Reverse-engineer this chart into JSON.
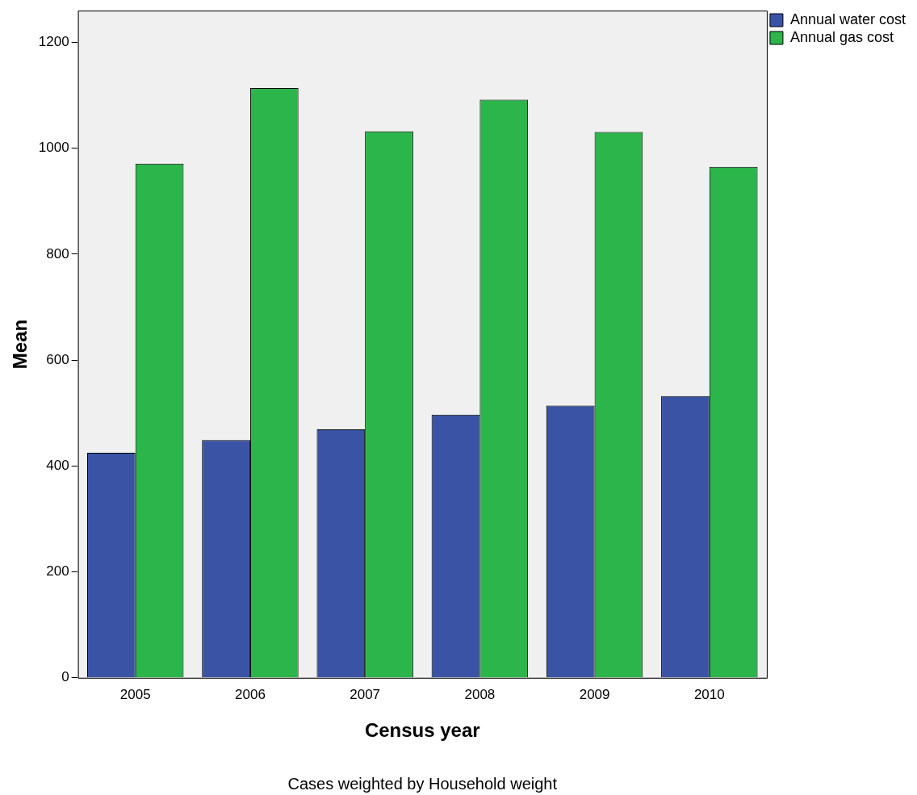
{
  "chart_data": {
    "type": "bar",
    "xlabel": "Census year",
    "ylabel": "Mean",
    "categories": [
      "2005",
      "2006",
      "2007",
      "2008",
      "2009",
      "2010"
    ],
    "series": [
      {
        "name": "Annual water cost",
        "color": "#3a53a4",
        "values": [
          425,
          449,
          469,
          497,
          514,
          532
        ]
      },
      {
        "name": "Annual gas cost",
        "color": "#2bb54a",
        "values": [
          971,
          1114,
          1032,
          1092,
          1031,
          965
        ]
      }
    ],
    "ylim": [
      0,
      1260
    ],
    "yticks": [
      0,
      200,
      400,
      600,
      800,
      1000,
      1200
    ],
    "grid": false,
    "legend": "top right",
    "annotations": [
      "Cases weighted by Household weight"
    ]
  }
}
